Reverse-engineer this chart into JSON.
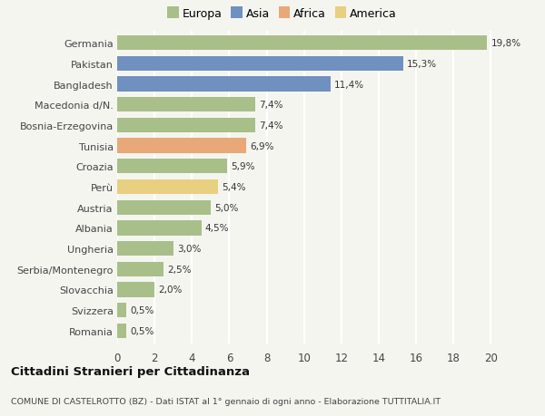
{
  "categories": [
    "Romania",
    "Svizzera",
    "Slovacchia",
    "Serbia/Montenegro",
    "Ungheria",
    "Albania",
    "Austria",
    "Perù",
    "Croazia",
    "Tunisia",
    "Bosnia-Erzegovina",
    "Macedonia d/N.",
    "Bangladesh",
    "Pakistan",
    "Germania"
  ],
  "values": [
    0.5,
    0.5,
    2.0,
    2.5,
    3.0,
    4.5,
    5.0,
    5.4,
    5.9,
    6.9,
    7.4,
    7.4,
    11.4,
    15.3,
    19.8
  ],
  "labels": [
    "0,5%",
    "0,5%",
    "2,0%",
    "2,5%",
    "3,0%",
    "4,5%",
    "5,0%",
    "5,4%",
    "5,9%",
    "6,9%",
    "7,4%",
    "7,4%",
    "11,4%",
    "15,3%",
    "19,8%"
  ],
  "colors": [
    "#a8bf8a",
    "#a8bf8a",
    "#a8bf8a",
    "#a8bf8a",
    "#a8bf8a",
    "#a8bf8a",
    "#a8bf8a",
    "#e8d080",
    "#a8bf8a",
    "#e8a878",
    "#a8bf8a",
    "#a8bf8a",
    "#7090c0",
    "#7090c0",
    "#a8bf8a"
  ],
  "legend_labels": [
    "Europa",
    "Asia",
    "Africa",
    "America"
  ],
  "legend_colors": [
    "#a8bf8a",
    "#7090c0",
    "#e8a878",
    "#e8d080"
  ],
  "title": "Cittadini Stranieri per Cittadinanza",
  "subtitle": "COMUNE DI CASTELROTTO (BZ) - Dati ISTAT al 1° gennaio di ogni anno - Elaborazione TUTTITALIA.IT",
  "xlim": [
    0,
    21
  ],
  "xticks": [
    0,
    2,
    4,
    6,
    8,
    10,
    12,
    14,
    16,
    18,
    20
  ],
  "background_color": "#f5f5f0",
  "grid_color": "#ffffff",
  "bar_height": 0.72
}
